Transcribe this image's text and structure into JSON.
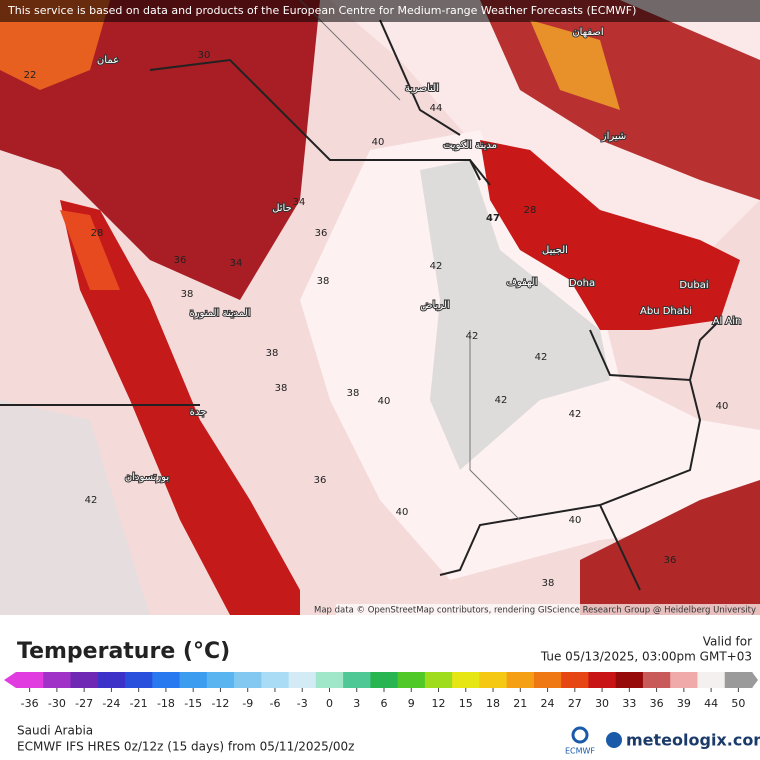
{
  "header": {
    "notice": "This service is based on data and products of the European Centre for Medium-range Weather Forecasts (ECMWF)",
    "attribution": "Map data © OpenStreetMap contributors, rendering GIScience Research Group @ Heidelberg University"
  },
  "map": {
    "labels": [
      "47",
      "42",
      "42",
      "42",
      "42",
      "42",
      "42",
      "40",
      "40",
      "40",
      "40",
      "40",
      "38",
      "38",
      "38",
      "38",
      "38",
      "38",
      "36",
      "36",
      "36",
      "36",
      "34",
      "34",
      "30",
      "28",
      "28",
      "22",
      "44",
      "Doha",
      "Dubai",
      "Abu Dhabi",
      "Al Ain",
      "الرياض",
      "المدينة المنورة",
      "مدينة الكويت",
      "جدة",
      "بورتسودان",
      "حائل",
      "شيراز",
      "اصفهان",
      "الناصرية",
      "الجبيل",
      "الهفوف",
      "عمان"
    ]
  },
  "legend": {
    "title": "Temperature (°C)",
    "valid_label": "Valid for",
    "valid_time": "Tue 05/13/2025, 03:00pm GMT+03",
    "ticks": [
      -36,
      -30,
      -27,
      -24,
      -21,
      -18,
      -15,
      -12,
      -9,
      -6,
      -3,
      0,
      3,
      6,
      9,
      12,
      15,
      18,
      21,
      24,
      27,
      30,
      33,
      36,
      39,
      44,
      50
    ],
    "colors": [
      "#e03ce0",
      "#a032c8",
      "#6e28b4",
      "#3c32c8",
      "#2850dc",
      "#2878f0",
      "#3c9cf0",
      "#5ab4f0",
      "#82c8f0",
      "#aadcf5",
      "#d2ebf5",
      "#a0e6c8",
      "#50c896",
      "#28b450",
      "#50c828",
      "#a0dc1e",
      "#e6e614",
      "#f5c814",
      "#f5a014",
      "#f07814",
      "#e64614",
      "#c81414",
      "#960a0a",
      "#c85a5a",
      "#f0aaaa",
      "#f5f0f0",
      "#9a9a9a"
    ]
  },
  "footer": {
    "region": "Saudi Arabia",
    "model": "ECMWF IFS HRES 0z/12z (15 days) from  05/11/2025/00z",
    "ecmwf": "ECMWF",
    "brand": "meteologix.com"
  }
}
